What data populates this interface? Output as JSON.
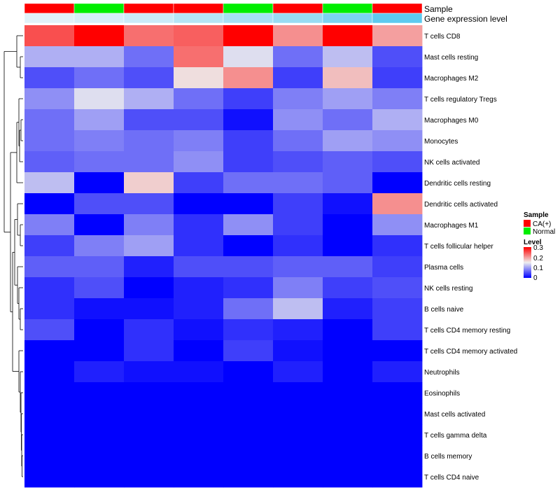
{
  "chart_data": {
    "type": "heatmap",
    "column_annotations": [
      {
        "name": "Sample",
        "values": [
          "CA(+)",
          "Normal",
          "CA(+)",
          "CA(+)",
          "Normal",
          "CA(+)",
          "Normal",
          "CA(+)"
        ]
      },
      {
        "name": "Gene expression level",
        "values": [
          0.05,
          0.12,
          0.2,
          0.35,
          0.45,
          0.55,
          0.75,
          0.95
        ]
      }
    ],
    "rows": [
      "T cells CD8",
      "Mast cells resting",
      "Macrophages M2",
      "T cells regulatory  Tregs",
      "Macrophages M0",
      "Monocytes",
      "NK cells activated",
      "Dendritic cells resting",
      "Dendritic cells activated",
      "Macrophages M1",
      "T cells follicular helper",
      "Plasma cells",
      "NK cells resting",
      "B cells naive",
      "T cells CD4 memory resting",
      "T cells CD4 memory activated",
      "Neutrophils",
      "Eosinophils",
      "Mast cells activated",
      "T cells gamma delta",
      "B cells memory",
      "T cells CD4 naive"
    ],
    "values": [
      [
        0.25,
        0.3,
        0.23,
        0.24,
        0.3,
        0.21,
        0.3,
        0.2
      ],
      [
        0.11,
        0.11,
        0.07,
        0.23,
        0.14,
        0.07,
        0.12,
        0.05
      ],
      [
        0.05,
        0.07,
        0.05,
        0.16,
        0.21,
        0.04,
        0.18,
        0.04
      ],
      [
        0.09,
        0.14,
        0.11,
        0.07,
        0.04,
        0.08,
        0.1,
        0.08
      ],
      [
        0.07,
        0.1,
        0.05,
        0.05,
        0.01,
        0.09,
        0.07,
        0.11
      ],
      [
        0.07,
        0.08,
        0.07,
        0.08,
        0.04,
        0.07,
        0.1,
        0.09
      ],
      [
        0.06,
        0.07,
        0.07,
        0.09,
        0.04,
        0.05,
        0.06,
        0.05
      ],
      [
        0.12,
        0.0,
        0.17,
        0.04,
        0.07,
        0.07,
        0.06,
        0.0
      ],
      [
        0.0,
        0.05,
        0.05,
        0.0,
        0.0,
        0.04,
        0.01,
        0.21
      ],
      [
        0.08,
        0.0,
        0.08,
        0.03,
        0.09,
        0.04,
        0.0,
        0.09
      ],
      [
        0.04,
        0.08,
        0.1,
        0.03,
        0.0,
        0.03,
        0.0,
        0.03
      ],
      [
        0.06,
        0.06,
        0.02,
        0.05,
        0.05,
        0.06,
        0.06,
        0.04
      ],
      [
        0.03,
        0.05,
        0.0,
        0.02,
        0.03,
        0.08,
        0.04,
        0.05
      ],
      [
        0.03,
        0.01,
        0.01,
        0.02,
        0.07,
        0.12,
        0.02,
        0.04
      ],
      [
        0.05,
        0.0,
        0.03,
        0.01,
        0.03,
        0.02,
        0.0,
        0.04
      ],
      [
        0.0,
        0.0,
        0.03,
        0.0,
        0.04,
        0.01,
        0.0,
        0.0
      ],
      [
        0.0,
        0.02,
        0.01,
        0.01,
        0.0,
        0.02,
        0.0,
        0.02
      ],
      [
        0.0,
        0.0,
        0.0,
        0.0,
        0.0,
        0.0,
        0.0,
        0.0
      ],
      [
        0.0,
        0.0,
        0.0,
        0.0,
        0.0,
        0.0,
        0.0,
        0.0
      ],
      [
        0.0,
        0.0,
        0.0,
        0.0,
        0.0,
        0.0,
        0.0,
        0.0
      ],
      [
        0.0,
        0.0,
        0.0,
        0.0,
        0.0,
        0.0,
        0.0,
        0.0
      ],
      [
        0.0,
        0.0,
        0.0,
        0.0,
        0.0,
        0.0,
        0.0,
        0.0
      ]
    ],
    "color_scale": {
      "range": [
        0,
        0.3
      ],
      "low": "#0000FF",
      "mid": "#EEEEEE",
      "high": "#FF0000"
    },
    "sample_colors": {
      "CA(+)": "#FF0000",
      "Normal": "#00EE00"
    },
    "expression_colors": {
      "low": "#E8F4FA",
      "high": "#56C8EE"
    },
    "legends": [
      {
        "title": "Sample",
        "entries": [
          {
            "label": "CA(+)",
            "color": "#FF0000"
          },
          {
            "label": "Normal",
            "color": "#00EE00"
          }
        ]
      },
      {
        "title": "Level",
        "ticks": [
          "0.3",
          "0.2",
          "0.1",
          "0"
        ]
      }
    ],
    "dendrogram": "row",
    "legend_position": "right",
    "grid": false
  }
}
